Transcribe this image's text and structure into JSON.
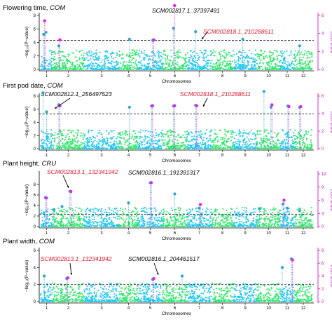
{
  "chart_data": [
    {
      "type": "scatter",
      "title": "Flowering time, ",
      "title_italic": "COM",
      "xlabel": "Chromosomes",
      "ylabel": "−log₁₀(P−value)",
      "y2label": "LOD score",
      "chromosomes": [
        "1",
        "2",
        "3",
        "4",
        "5",
        "6",
        "7",
        "8",
        "9",
        "10",
        "11",
        "12"
      ],
      "ylim": [
        0,
        8
      ],
      "yticks": [
        0,
        2,
        4,
        6,
        8
      ],
      "y2lim": [
        0,
        6
      ],
      "y2ticks": [
        0,
        2,
        4,
        6
      ],
      "threshold": 4.3,
      "peaks": [
        {
          "chr": 1,
          "pos": 0.25,
          "y": 5.2,
          "lod": 5.4
        },
        {
          "chr": 1,
          "pos": 0.45,
          "y": 5.5,
          "lod": null
        },
        {
          "chr": 2,
          "pos": 0.2,
          "y": 3.5,
          "lod": 3.3
        },
        {
          "chr": 4,
          "pos": 0.55,
          "y": 4.5,
          "lod": null
        },
        {
          "chr": 5,
          "pos": 0.6,
          "y": 4.3,
          "lod": 3.3
        },
        {
          "chr": 6,
          "pos": 0.45,
          "y": 6.1,
          "lod": 7.1
        },
        {
          "chr": 7,
          "pos": 0.35,
          "y": 5.6,
          "lod": null
        },
        {
          "chr": 9,
          "pos": 0.4,
          "y": 4.5,
          "lod": null
        },
        {
          "chr": 12,
          "pos": 0.3,
          "y": 3.5,
          "lod": null
        }
      ],
      "annotations": [
        {
          "text": "SCM002817.1_37397491",
          "color": "black"
        },
        {
          "text": "SCM002818.1_210288611",
          "color": "red"
        }
      ]
    },
    {
      "type": "scatter",
      "title": "First pod date, ",
      "title_italic": "COM",
      "xlabel": "Chromosomes",
      "ylabel": "−log₁₀(P−value)",
      "y2label": "LOD score",
      "chromosomes": [
        "1",
        "2",
        "3",
        "4",
        "5",
        "6",
        "7",
        "8",
        "9",
        "10",
        "11",
        "12"
      ],
      "ylim": [
        0,
        8
      ],
      "yticks": [
        0,
        2,
        4,
        6,
        8
      ],
      "y2lim": [
        0,
        6
      ],
      "y2ticks": [
        0,
        2,
        4,
        6
      ],
      "threshold": 5.3,
      "peaks": [
        {
          "chr": 1,
          "pos": 0.2,
          "y": 8.5,
          "lod": null
        },
        {
          "chr": 1,
          "pos": 0.5,
          "y": 5.6,
          "lod": null
        },
        {
          "chr": 2,
          "pos": 0.2,
          "y": 6.7,
          "lod": 4.9
        },
        {
          "chr": 4,
          "pos": 0.55,
          "y": 6.3,
          "lod": null
        },
        {
          "chr": 5,
          "pos": 0.55,
          "y": 6.5,
          "lod": 4.9
        },
        {
          "chr": 6,
          "pos": 0.45,
          "y": 6.5,
          "lod": 4.9
        },
        {
          "chr": 7,
          "pos": 0.35,
          "y": 6.6,
          "lod": 4.9
        },
        {
          "chr": 10,
          "pos": 0.3,
          "y": 8.7,
          "lod": null
        },
        {
          "chr": 10,
          "pos": 0.6,
          "y": 6.3,
          "lod": 5.0
        },
        {
          "chr": 11,
          "pos": 0.55,
          "y": 6.5,
          "lod": 4.8
        },
        {
          "chr": 12,
          "pos": 0.3,
          "y": 6.3,
          "lod": 4.8
        }
      ],
      "annotations": [
        {
          "text": "SCM002812.1_256497523",
          "color": "black"
        },
        {
          "text": "SCM002818.1_210288611",
          "color": "red"
        }
      ]
    },
    {
      "type": "scatter",
      "title": "Plant height, ",
      "title_italic": "CRU",
      "xlabel": "Chromosomes",
      "ylabel": "−log₁₀(P−value)",
      "y2label": "LOD score",
      "chromosomes": [
        "1",
        "2",
        "3",
        "4",
        "5",
        "6",
        "7",
        "8",
        "9",
        "10",
        "11",
        "12"
      ],
      "ylim": [
        0,
        10
      ],
      "yticks": [
        0,
        2,
        4,
        6,
        8
      ],
      "y2lim": [
        0,
        12
      ],
      "y2ticks": [
        0,
        3,
        6,
        9,
        12
      ],
      "threshold": 2.3,
      "peaks": [
        {
          "chr": 1,
          "pos": 0.4,
          "y": 5.5,
          "lod": 6.5
        },
        {
          "chr": 2,
          "pos": 0.05,
          "y": 3.2,
          "lod": null
        },
        {
          "chr": 2,
          "pos": 0.3,
          "y": 3.8,
          "lod": null
        },
        {
          "chr": 2,
          "pos": 0.55,
          "y": 6.7,
          "lod": 8.0
        },
        {
          "chr": 4,
          "pos": 0.5,
          "y": 4.5,
          "lod": null
        },
        {
          "chr": 5,
          "pos": 0.5,
          "y": 8.3,
          "lod": 10.0
        },
        {
          "chr": 6,
          "pos": 0.5,
          "y": 6.2,
          "lod": null
        },
        {
          "chr": 7,
          "pos": 0.5,
          "y": 3.5,
          "lod": 5.0
        },
        {
          "chr": 10,
          "pos": 0.1,
          "y": 3.4,
          "lod": null
        },
        {
          "chr": 11,
          "pos": 0.2,
          "y": 4.3,
          "lod": 6.0
        },
        {
          "chr": 11,
          "pos": 0.5,
          "y": 3.5,
          "lod": null
        },
        {
          "chr": 12,
          "pos": 0.3,
          "y": 3.0,
          "lod": null
        }
      ],
      "annotations": [
        {
          "text": "SCM002816.1_191391317",
          "color": "black"
        },
        {
          "text": "SCM002813.1_132341942",
          "color": "red"
        }
      ]
    },
    {
      "type": "scatter",
      "title": "Plant width, ",
      "title_italic": "COM",
      "xlabel": "Chromosomes",
      "ylabel": "−log₁₀(P−value)",
      "y2label": "LOD score",
      "chromosomes": [
        "1",
        "2",
        "3",
        "4",
        "5",
        "6",
        "7",
        "8",
        "9",
        "10",
        "11",
        "12"
      ],
      "ylim": [
        0,
        6
      ],
      "yticks": [
        0,
        2,
        4,
        6
      ],
      "y2lim": [
        0,
        8
      ],
      "y2ticks": [
        0,
        2,
        4,
        6,
        8
      ],
      "threshold": 2.0,
      "peaks": [
        {
          "chr": 1,
          "pos": 0.3,
          "y": 3.0,
          "lod": null
        },
        {
          "chr": 2,
          "pos": 0.45,
          "y": 2.7,
          "lod": 3.7
        },
        {
          "chr": 5,
          "pos": 0.6,
          "y": 2.6,
          "lod": 3.6
        },
        {
          "chr": 6,
          "pos": 0.8,
          "y": 3.0,
          "lod": null
        },
        {
          "chr": 11,
          "pos": 0.15,
          "y": 4.0,
          "lod": null
        },
        {
          "chr": 11,
          "pos": 0.8,
          "y": 5.0,
          "lod": 6.5
        }
      ],
      "annotations": [
        {
          "text": "SCM002813.1_132341942",
          "color": "red"
        },
        {
          "text": "SCM002816.1_204461517",
          "color": "black"
        }
      ]
    }
  ],
  "colors": {
    "odd_chromosome": "#1ec8f0",
    "even_chromosome": "#2ee86a",
    "peak_point": "#2aa6cf",
    "lod_line": "#dd22dd",
    "lod_point": "#e61ee6",
    "annotation_red": "#e8192c",
    "threshold": "#222222"
  }
}
